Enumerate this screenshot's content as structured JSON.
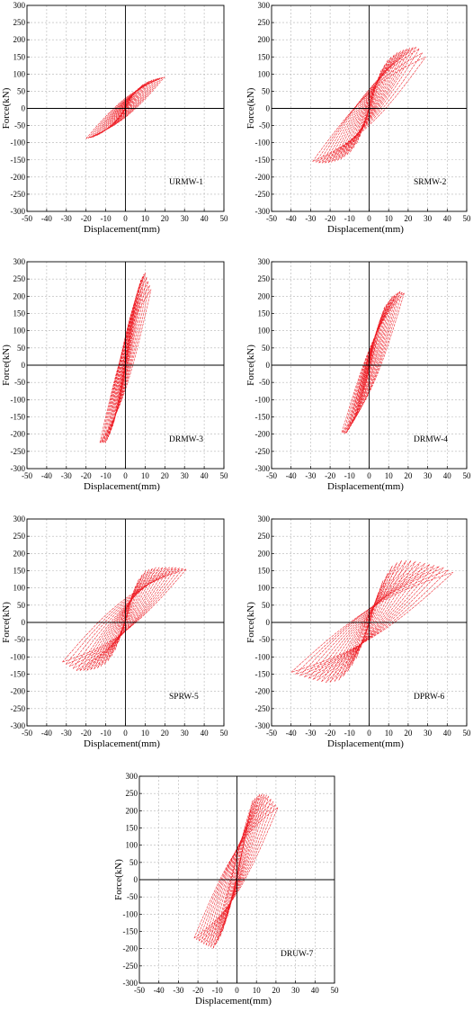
{
  "figure": {
    "panels": [
      {
        "id": "URMW-1",
        "label": "URMW-1",
        "xlabel": "Displacement(mm)",
        "ylabel": "Force(kN)"
      },
      {
        "id": "SRMW-2",
        "label": "SRMW-2",
        "xlabel": "Displacement(mm)",
        "ylabel": "Force(kN)"
      },
      {
        "id": "DRMW-3",
        "label": "DRMW-3",
        "xlabel": "Displacement(mm)",
        "ylabel": "Force(kN)"
      },
      {
        "id": "DRMW-4",
        "label": "DRMW-4",
        "xlabel": "Displacement(mm)",
        "ylabel": "Force(kN)"
      },
      {
        "id": "SPRW-5",
        "label": "SPRW-5",
        "xlabel": "Displacement(mm)",
        "ylabel": "Force(kN)"
      },
      {
        "id": "DPRW-6",
        "label": "DPRW-6",
        "xlabel": "Displacement(mm)",
        "ylabel": "Force(kN)"
      },
      {
        "id": "DRUW-7",
        "label": "DRUW-7",
        "xlabel": "Displacement(mm)",
        "ylabel": "Force(kN)"
      }
    ]
  },
  "colors": {
    "curve": "#ee1c24",
    "axis": "#000000",
    "grid": "#b5b5b5"
  },
  "chart_data": [
    {
      "type": "line",
      "label": "URMW-1",
      "xlabel": "Displacement(mm)",
      "ylabel": "Force(kN)",
      "xlim": [
        -50,
        50
      ],
      "ylim": [
        -300,
        300
      ],
      "grid": true,
      "xticks": [
        "-50",
        "-40",
        "-30",
        "-20",
        "-10",
        "0",
        "10",
        "20",
        "30",
        "40",
        "50"
      ],
      "yticks": [
        "300",
        "250",
        "200",
        "150",
        "100",
        "50",
        "0",
        "-50",
        "-100",
        "-150",
        "-200",
        "-250",
        "-300"
      ],
      "envelope": {
        "pos_disp": [
          0,
          2,
          5,
          9,
          13,
          17,
          20
        ],
        "pos_force": [
          0,
          25,
          50,
          70,
          82,
          88,
          92
        ],
        "neg_disp": [
          0,
          -2,
          -5,
          -9,
          -13,
          -17,
          -20
        ],
        "neg_force": [
          0,
          -20,
          -40,
          -60,
          -75,
          -85,
          -88
        ]
      }
    },
    {
      "type": "line",
      "label": "SRMW-2",
      "xlabel": "Displacement(mm)",
      "ylabel": "Force(kN)",
      "xlim": [
        -50,
        50
      ],
      "ylim": [
        -300,
        300
      ],
      "grid": true,
      "xticks": [
        "-50",
        "-40",
        "-30",
        "-20",
        "-10",
        "0",
        "10",
        "20",
        "30",
        "40",
        "50"
      ],
      "yticks": [
        "300",
        "250",
        "200",
        "150",
        "100",
        "50",
        "0",
        "-50",
        "-100",
        "-150",
        "-200",
        "-250",
        "-300"
      ],
      "envelope": {
        "pos_disp": [
          0,
          3,
          6,
          10,
          15,
          20,
          25,
          29
        ],
        "pos_force": [
          0,
          60,
          110,
          145,
          165,
          175,
          180,
          150
        ],
        "neg_disp": [
          0,
          -3,
          -6,
          -10,
          -15,
          -20,
          -25,
          -29
        ],
        "neg_force": [
          0,
          -55,
          -100,
          -130,
          -150,
          -158,
          -160,
          -155
        ]
      }
    },
    {
      "type": "line",
      "label": "DRMW-3",
      "xlabel": "Displacement(mm)",
      "ylabel": "Force(kN)",
      "xlim": [
        -50,
        50
      ],
      "ylim": [
        -300,
        300
      ],
      "grid": true,
      "xticks": [
        "-50",
        "-40",
        "-30",
        "-20",
        "-10",
        "0",
        "10",
        "20",
        "30",
        "40",
        "50"
      ],
      "yticks": [
        "300",
        "250",
        "200",
        "150",
        "100",
        "50",
        "0",
        "-50",
        "-100",
        "-150",
        "-200",
        "-250",
        "-300"
      ],
      "envelope": {
        "pos_disp": [
          0,
          2,
          4,
          6,
          8,
          10,
          13
        ],
        "pos_force": [
          0,
          80,
          150,
          210,
          250,
          270,
          220
        ],
        "neg_disp": [
          0,
          -2,
          -4,
          -6,
          -8,
          -10,
          -13
        ],
        "neg_force": [
          0,
          -60,
          -120,
          -170,
          -200,
          -225,
          -225
        ]
      }
    },
    {
      "type": "line",
      "label": "DRMW-4",
      "xlabel": "Displacement(mm)",
      "ylabel": "Force(kN)",
      "xlim": [
        -50,
        50
      ],
      "ylim": [
        -300,
        300
      ],
      "grid": true,
      "xticks": [
        "-50",
        "-40",
        "-30",
        "-20",
        "-10",
        "0",
        "10",
        "20",
        "30",
        "40",
        "50"
      ],
      "yticks": [
        "300",
        "250",
        "200",
        "150",
        "100",
        "50",
        "0",
        "-50",
        "-100",
        "-150",
        "-200",
        "-250",
        "-300"
      ],
      "envelope": {
        "pos_disp": [
          0,
          2,
          5,
          8,
          12,
          16,
          18
        ],
        "pos_force": [
          0,
          60,
          120,
          170,
          200,
          215,
          210
        ],
        "neg_disp": [
          0,
          -2,
          -5,
          -8,
          -12,
          -14
        ],
        "neg_force": [
          0,
          -50,
          -110,
          -160,
          -200,
          -195
        ]
      }
    },
    {
      "type": "line",
      "label": "SPRW-5",
      "xlabel": "Displacement(mm)",
      "ylabel": "Force(kN)",
      "xlim": [
        -50,
        50
      ],
      "ylim": [
        -300,
        300
      ],
      "grid": true,
      "xticks": [
        "-50",
        "-40",
        "-30",
        "-20",
        "-10",
        "0",
        "10",
        "20",
        "30",
        "40",
        "50"
      ],
      "yticks": [
        "300",
        "250",
        "200",
        "150",
        "100",
        "50",
        "0",
        "-50",
        "-100",
        "-150",
        "-200",
        "-250",
        "-300"
      ],
      "envelope": {
        "pos_disp": [
          0,
          3,
          6,
          10,
          15,
          20,
          25,
          31
        ],
        "pos_force": [
          0,
          70,
          120,
          150,
          160,
          160,
          160,
          155
        ],
        "neg_disp": [
          0,
          -3,
          -6,
          -10,
          -15,
          -20,
          -25,
          -32
        ],
        "neg_force": [
          0,
          -50,
          -90,
          -120,
          -135,
          -140,
          -140,
          -115
        ]
      }
    },
    {
      "type": "line",
      "label": "DPRW-6",
      "xlabel": "Displacement(mm)",
      "ylabel": "Force(kN)",
      "xlim": [
        -50,
        50
      ],
      "ylim": [
        -300,
        300
      ],
      "grid": true,
      "xticks": [
        "-50",
        "-40",
        "-30",
        "-20",
        "-10",
        "0",
        "10",
        "20",
        "30",
        "40",
        "50"
      ],
      "yticks": [
        "300",
        "250",
        "200",
        "150",
        "100",
        "50",
        "0",
        "-50",
        "-100",
        "-150",
        "-200",
        "-250",
        "-300"
      ],
      "envelope": {
        "pos_disp": [
          0,
          3,
          7,
          12,
          16,
          22,
          30,
          38,
          43
        ],
        "pos_force": [
          0,
          60,
          120,
          165,
          180,
          180,
          170,
          160,
          145
        ],
        "neg_disp": [
          0,
          -3,
          -7,
          -12,
          -16,
          -22,
          -30,
          -38,
          -40
        ],
        "neg_force": [
          0,
          -55,
          -110,
          -150,
          -170,
          -175,
          -165,
          -150,
          -145
        ]
      }
    },
    {
      "type": "line",
      "label": "DRUW-7",
      "xlabel": "Displacement(mm)",
      "ylabel": "Force(kN)",
      "xlim": [
        -50,
        50
      ],
      "ylim": [
        -300,
        300
      ],
      "grid": true,
      "xticks": [
        "-50",
        "-40",
        "-30",
        "-20",
        "-10",
        "0",
        "10",
        "20",
        "30",
        "40",
        "50"
      ],
      "yticks": [
        "300",
        "250",
        "200",
        "150",
        "100",
        "50",
        "0",
        "-50",
        "-100",
        "-150",
        "-200",
        "-250",
        "-300"
      ],
      "envelope": {
        "pos_disp": [
          0,
          2,
          5,
          8,
          12,
          16,
          21
        ],
        "pos_force": [
          0,
          60,
          150,
          230,
          250,
          245,
          210
        ],
        "neg_disp": [
          0,
          -2,
          -5,
          -8,
          -12,
          -16,
          -22
        ],
        "neg_force": [
          0,
          -50,
          -110,
          -160,
          -200,
          -190,
          -170
        ]
      }
    }
  ]
}
